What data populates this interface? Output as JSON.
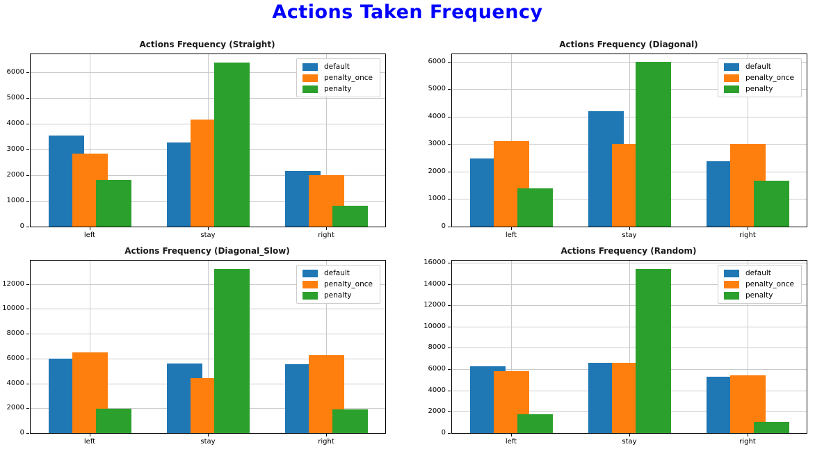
{
  "figure_title": "Actions Taken Frequency",
  "colors": {
    "figure_title": "#0000ff",
    "grid": "#c9c9c9",
    "axis": "#000000",
    "series_default": "#1f77b4",
    "series_penalty_once": "#ff7f0e",
    "series_penalty": "#2ca02c"
  },
  "chart_data": [
    {
      "type": "bar",
      "title": "Actions Frequency (Straight)",
      "categories": [
        "left",
        "stay",
        "right"
      ],
      "series": [
        {
          "name": "default",
          "color": "#1f77b4",
          "values": [
            3550,
            3280,
            2160
          ]
        },
        {
          "name": "penalty_once",
          "color": "#ff7f0e",
          "values": [
            2850,
            4150,
            2000
          ]
        },
        {
          "name": "penalty",
          "color": "#2ca02c",
          "values": [
            1820,
            6380,
            800
          ]
        }
      ],
      "yticks": [
        0,
        1000,
        2000,
        3000,
        4000,
        5000,
        6000
      ],
      "ylim": [
        0,
        6700
      ],
      "grid": true,
      "legend_position": "upper-right"
    },
    {
      "type": "bar",
      "title": "Actions Frequency (Diagonal)",
      "categories": [
        "left",
        "stay",
        "right"
      ],
      "series": [
        {
          "name": "default",
          "color": "#1f77b4",
          "values": [
            2480,
            4200,
            2370
          ]
        },
        {
          "name": "penalty_once",
          "color": "#ff7f0e",
          "values": [
            3100,
            3000,
            3000
          ]
        },
        {
          "name": "penalty",
          "color": "#2ca02c",
          "values": [
            1400,
            5980,
            1670
          ]
        }
      ],
      "yticks": [
        0,
        1000,
        2000,
        3000,
        4000,
        5000,
        6000
      ],
      "ylim": [
        0,
        6270
      ],
      "grid": true,
      "legend_position": "upper-right"
    },
    {
      "type": "bar",
      "title": "Actions Frequency (Diagonal_Slow)",
      "categories": [
        "left",
        "stay",
        "right"
      ],
      "series": [
        {
          "name": "default",
          "color": "#1f77b4",
          "values": [
            6000,
            5600,
            5520
          ]
        },
        {
          "name": "penalty_once",
          "color": "#ff7f0e",
          "values": [
            6480,
            4400,
            6250
          ]
        },
        {
          "name": "penalty",
          "color": "#2ca02c",
          "values": [
            1980,
            13240,
            1900
          ]
        }
      ],
      "yticks": [
        0,
        2000,
        4000,
        6000,
        8000,
        10000,
        12000
      ],
      "ylim": [
        0,
        13890
      ],
      "grid": true,
      "legend_position": "upper-right"
    },
    {
      "type": "bar",
      "title": "Actions Frequency (Random)",
      "categories": [
        "left",
        "stay",
        "right"
      ],
      "series": [
        {
          "name": "default",
          "color": "#1f77b4",
          "values": [
            6250,
            6590,
            5300
          ]
        },
        {
          "name": "penalty_once",
          "color": "#ff7f0e",
          "values": [
            5820,
            6590,
            5450
          ]
        },
        {
          "name": "penalty",
          "color": "#2ca02c",
          "values": [
            1760,
            15400,
            1030
          ]
        }
      ],
      "yticks": [
        0,
        2000,
        4000,
        6000,
        8000,
        10000,
        12000,
        14000,
        16000
      ],
      "ylim": [
        0,
        16190
      ],
      "grid": true,
      "legend_position": "upper-right"
    }
  ]
}
